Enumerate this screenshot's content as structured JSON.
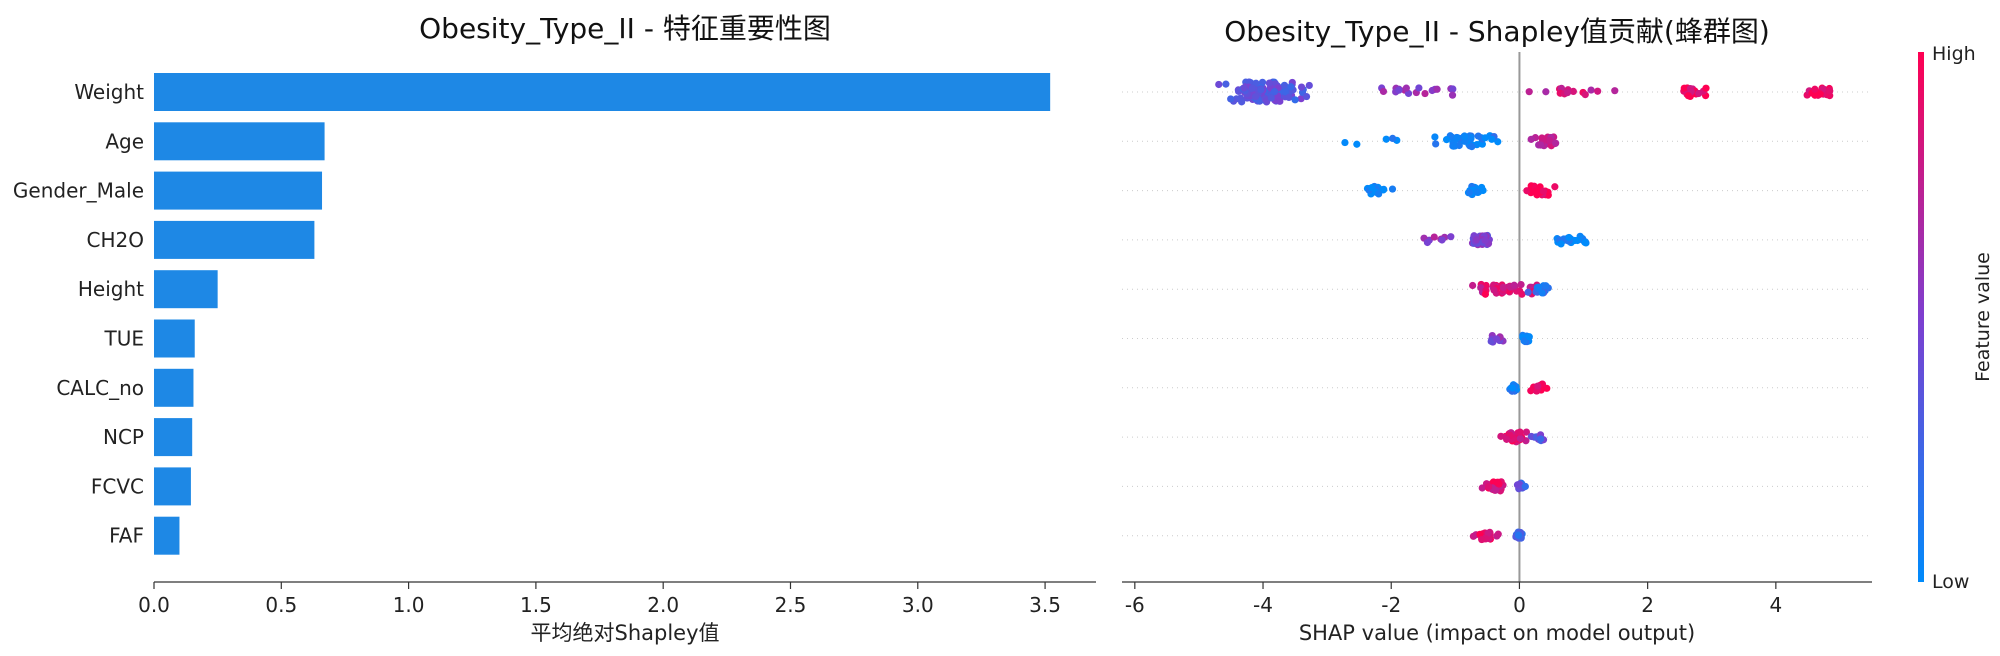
{
  "chart_data": [
    {
      "type": "bar",
      "orientation": "horizontal",
      "title": "Obesity_Type_II - 特征重要性图",
      "xlabel": "平均绝对Shapley值",
      "ylabel": "",
      "categories": [
        "Weight",
        "Age",
        "Gender_Male",
        "CH2O",
        "Height",
        "TUE",
        "CALC_no",
        "NCP",
        "FCVC",
        "FAF"
      ],
      "values": [
        3.52,
        0.67,
        0.66,
        0.63,
        0.25,
        0.16,
        0.155,
        0.15,
        0.145,
        0.1
      ],
      "xlim": [
        0,
        3.7
      ],
      "xticks": [
        "0.0",
        "0.5",
        "1.0",
        "1.5",
        "2.0",
        "2.5",
        "3.0",
        "3.5"
      ],
      "color": "#1e88e5",
      "grid": false
    },
    {
      "type": "scatter",
      "subtype": "beeswarm",
      "title": "Obesity_Type_II - Shapley值贡献(蜂群图)",
      "xlabel": "SHAP value (impact on model output)",
      "ylabel": "",
      "features": [
        "Weight",
        "Age",
        "Gender_Male",
        "CH2O",
        "Height",
        "TUE",
        "CALC_no",
        "NCP",
        "FCVC",
        "FAF"
      ],
      "xlim": [
        -6.2,
        5.5
      ],
      "xticks": [
        "-6",
        "-4",
        "-2",
        "0",
        "2",
        "4"
      ],
      "colorbar": {
        "label": "Feature value",
        "high": "High",
        "low": "Low",
        "low_color": "#008bfb",
        "high_color": "#ff0052"
      },
      "rows": [
        {
          "feature": "Weight",
          "groups": [
            {
              "center": -4.0,
              "spread": 0.9,
              "count": 140,
              "color": 0.35
            },
            {
              "center": -1.5,
              "spread": 1.2,
              "count": 18,
              "color": 0.6
            },
            {
              "center": 0.8,
              "spread": 0.9,
              "count": 14,
              "color": 0.8
            },
            {
              "center": 2.7,
              "spread": 0.3,
              "count": 24,
              "color": 0.95
            },
            {
              "center": 4.7,
              "spread": 0.3,
              "count": 26,
              "color": 0.95
            }
          ]
        },
        {
          "feature": "Age",
          "groups": [
            {
              "center": -0.8,
              "spread": 0.6,
              "count": 45,
              "color": 0.05
            },
            {
              "center": -2.3,
              "spread": 0.9,
              "count": 5,
              "color": 0.05
            },
            {
              "center": 0.4,
              "spread": 0.25,
              "count": 25,
              "color": 0.75
            }
          ]
        },
        {
          "feature": "Gender_Male",
          "groups": [
            {
              "center": -2.2,
              "spread": 0.5,
              "count": 20,
              "color": 0.0
            },
            {
              "center": -0.7,
              "spread": 0.2,
              "count": 20,
              "color": 0.0
            },
            {
              "center": 0.3,
              "spread": 0.3,
              "count": 30,
              "color": 1.0
            }
          ]
        },
        {
          "feature": "CH2O",
          "groups": [
            {
              "center": -0.6,
              "spread": 0.25,
              "count": 30,
              "color": 0.5
            },
            {
              "center": -1.2,
              "spread": 0.4,
              "count": 8,
              "color": 0.6
            },
            {
              "center": 0.8,
              "spread": 0.35,
              "count": 24,
              "color": 0.0
            }
          ]
        },
        {
          "feature": "Height",
          "groups": [
            {
              "center": -0.3,
              "spread": 0.9,
              "count": 40,
              "color": 0.85
            },
            {
              "center": 0.3,
              "spread": 0.3,
              "count": 18,
              "color": 0.15
            }
          ]
        },
        {
          "feature": "TUE",
          "groups": [
            {
              "center": -0.4,
              "spread": 0.2,
              "count": 10,
              "color": 0.5
            },
            {
              "center": 0.1,
              "spread": 0.1,
              "count": 14,
              "color": 0.05
            }
          ]
        },
        {
          "feature": "CALC_no",
          "groups": [
            {
              "center": -0.1,
              "spread": 0.1,
              "count": 14,
              "color": 0.05
            },
            {
              "center": 0.3,
              "spread": 0.2,
              "count": 14,
              "color": 0.95
            }
          ]
        },
        {
          "feature": "NCP",
          "groups": [
            {
              "center": -0.1,
              "spread": 0.25,
              "count": 34,
              "color": 0.9
            },
            {
              "center": 0.3,
              "spread": 0.2,
              "count": 10,
              "color": 0.35
            }
          ]
        },
        {
          "feature": "FCVC",
          "groups": [
            {
              "center": -0.4,
              "spread": 0.25,
              "count": 28,
              "color": 0.9
            },
            {
              "center": 0.05,
              "spread": 0.15,
              "count": 10,
              "color": 0.3
            }
          ]
        },
        {
          "feature": "FAF",
          "groups": [
            {
              "center": -0.5,
              "spread": 0.35,
              "count": 20,
              "color": 0.9
            },
            {
              "center": 0.0,
              "spread": 0.08,
              "count": 14,
              "color": 0.2
            }
          ]
        }
      ]
    }
  ]
}
